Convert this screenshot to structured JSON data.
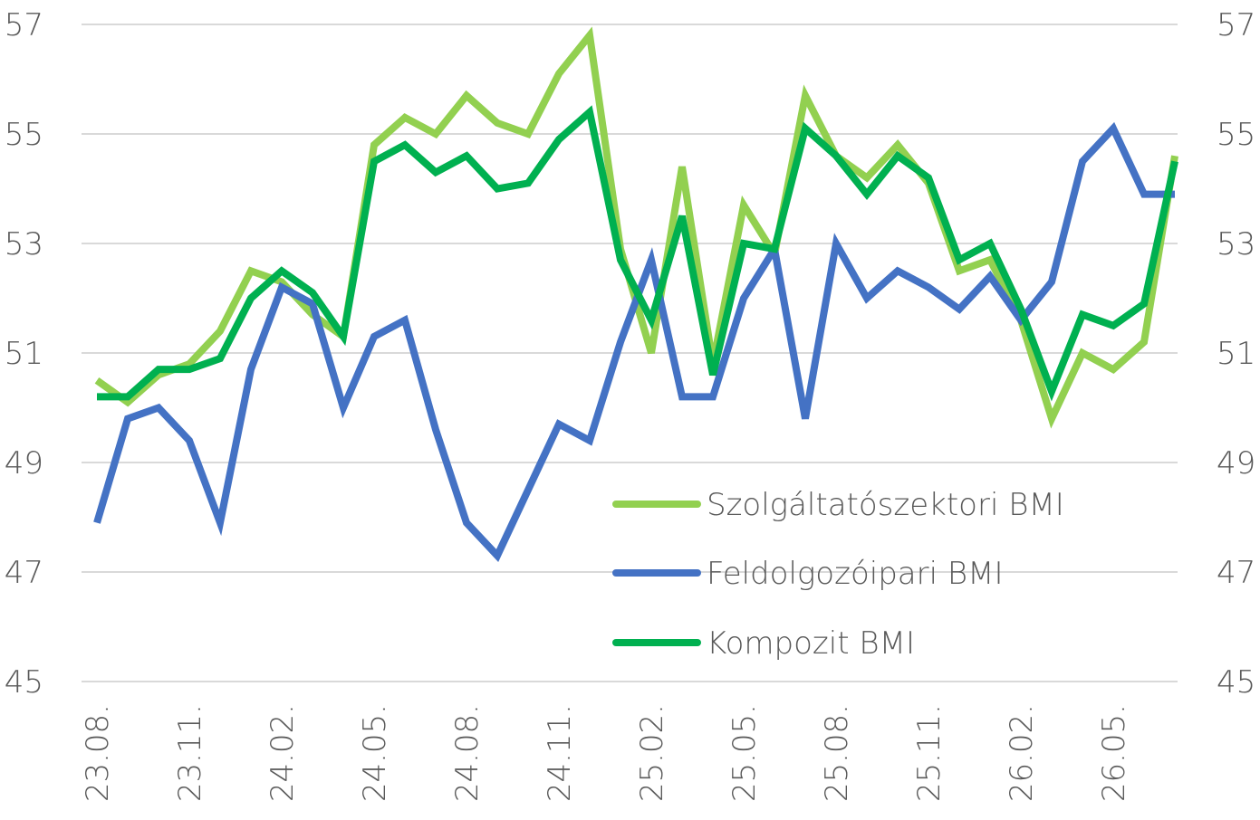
{
  "chart_data": {
    "type": "line",
    "title": "",
    "xlabel": "",
    "ylabel": "",
    "ylim": [
      45,
      57
    ],
    "yticks": [
      45,
      47,
      49,
      51,
      53,
      55,
      57
    ],
    "grid": "horizontal",
    "legend_position": "bottom-right",
    "x": [
      "23.08.",
      "23.09.",
      "23.10.",
      "23.11.",
      "23.12.",
      "24.01.",
      "24.02.",
      "24.03.",
      "24.04.",
      "24.05.",
      "24.06.",
      "24.07.",
      "24.08.",
      "24.09.",
      "24.10.",
      "24.11.",
      "24.12.",
      "25.01.",
      "25.02.",
      "25.03.",
      "25.04.",
      "25.05.",
      "25.06.",
      "25.07.",
      "25.08.",
      "25.09.",
      "25.10.",
      "25.11.",
      "25.12.",
      "26.01.",
      "26.02.",
      "26.03.",
      "26.04.",
      "26.05.",
      "26.06.",
      "26.07."
    ],
    "xtick_labels": [
      "23.08.",
      "23.11.",
      "24.02.",
      "24.05.",
      "24.08.",
      "24.11.",
      "25.02.",
      "25.05.",
      "25.08.",
      "25.11.",
      "26.02.",
      "26.05."
    ],
    "series": [
      {
        "name": "Szolgáltatószektori BMI",
        "color": "#92d050",
        "values": [
          50.5,
          50.1,
          50.6,
          50.8,
          51.4,
          52.5,
          52.3,
          51.7,
          51.3,
          54.8,
          55.3,
          55.0,
          55.7,
          55.2,
          55.0,
          56.1,
          56.8,
          52.9,
          51.0,
          54.4,
          50.8,
          53.7,
          52.8,
          55.7,
          54.6,
          54.2,
          54.8,
          54.1,
          52.5,
          52.7,
          51.6,
          49.8,
          51.0,
          50.7,
          51.2,
          54.6
        ]
      },
      {
        "name": "Feldolgozóipari BMI",
        "color": "#4472c4",
        "values": [
          47.9,
          49.8,
          50.0,
          49.4,
          47.9,
          50.7,
          52.2,
          51.9,
          50.0,
          51.3,
          51.6,
          49.6,
          47.9,
          47.3,
          48.5,
          49.7,
          49.4,
          51.2,
          52.7,
          50.2,
          50.2,
          52.0,
          52.9,
          49.8,
          53.0,
          52.0,
          52.5,
          52.2,
          51.8,
          52.4,
          51.6,
          52.3,
          54.5,
          55.1,
          53.9,
          53.9
        ]
      },
      {
        "name": "Kompozit BMI",
        "color": "#00b050",
        "values": [
          50.2,
          50.2,
          50.7,
          50.7,
          50.9,
          52.0,
          52.5,
          52.1,
          51.3,
          54.5,
          54.8,
          54.3,
          54.6,
          54.0,
          54.1,
          54.9,
          55.4,
          52.7,
          51.6,
          53.5,
          50.6,
          53.0,
          52.9,
          55.1,
          54.6,
          53.9,
          54.6,
          54.2,
          52.7,
          53.0,
          51.8,
          50.3,
          51.7,
          51.5,
          51.9,
          54.5
        ]
      }
    ]
  }
}
